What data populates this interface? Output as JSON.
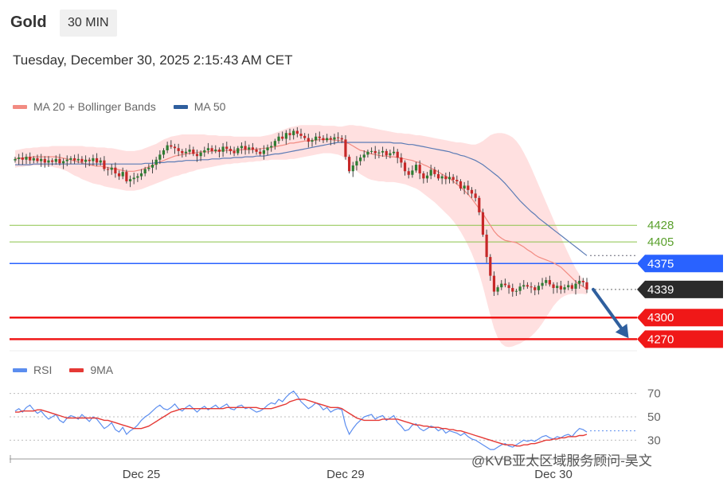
{
  "header": {
    "instrument": "Gold",
    "timeframe": "30 MIN",
    "datetime": "Tuesday, December 30, 2025 2:15:43 AM CET"
  },
  "watermark": "@KVB亚太区域服务顾问-吴文",
  "colors": {
    "up": "#2e7d32",
    "down": "#c62828",
    "ma20": "#f28b82",
    "band_fill": "#ffd6d6",
    "ma50": "#5b7bb5",
    "green_level": "#8bc34a",
    "green_text": "#5aa02c",
    "blue_level": "#2962ff",
    "red_level": "#f01818",
    "current": "#2b2b2b",
    "rsi": "#5b8def",
    "rsi_ma": "#e53935",
    "arrow": "#2f5f9e"
  },
  "chart_data": [
    {
      "type": "candlestick",
      "title": "Gold",
      "legend": [
        {
          "name": "MA 20 + Bollinger Bands",
          "color": "#f28b82"
        },
        {
          "name": "MA 50",
          "color": "#2f5f9e"
        }
      ],
      "legend_position": "top-left",
      "x_tick_labels": [
        "Dec 25",
        "Dec 29",
        "Dec 30"
      ],
      "x_tick_index": [
        34,
        89,
        145
      ],
      "ylim": [
        4255,
        4575
      ],
      "levels": [
        {
          "value": 4428,
          "label": "4428",
          "style": "green"
        },
        {
          "value": 4405,
          "label": "4405",
          "style": "green"
        },
        {
          "value": 4375,
          "label": "4375",
          "style": "blue"
        },
        {
          "value": 4339,
          "label": "4339",
          "style": "current"
        },
        {
          "value": 4300,
          "label": "4300",
          "style": "red"
        },
        {
          "value": 4270,
          "label": "4270",
          "style": "red"
        }
      ],
      "close": [
        4520,
        4522,
        4519,
        4523,
        4518,
        4521,
        4517,
        4520,
        4515,
        4518,
        4516,
        4520,
        4514,
        4517,
        4519,
        4521,
        4518,
        4520,
        4516,
        4519,
        4517,
        4521,
        4515,
        4518,
        4506,
        4505,
        4508,
        4500,
        4496,
        4502,
        4489,
        4492,
        4494,
        4496,
        4500,
        4506,
        4508,
        4512,
        4519,
        4526,
        4532,
        4539,
        4537,
        4535,
        4531,
        4528,
        4530,
        4533,
        4527,
        4524,
        4529,
        4532,
        4535,
        4531,
        4533,
        4530,
        4537,
        4534,
        4531,
        4528,
        4535,
        4538,
        4533,
        4536,
        4533,
        4530,
        4527,
        4532,
        4536,
        4538,
        4545,
        4551,
        4548,
        4556,
        4553,
        4559,
        4555,
        4552,
        4549,
        4544,
        4546,
        4551,
        4549,
        4546,
        4549,
        4547,
        4550,
        4549,
        4547,
        4523,
        4503,
        4511,
        4517,
        4522,
        4526,
        4530,
        4531,
        4528,
        4529,
        4531,
        4525,
        4528,
        4530,
        4522,
        4515,
        4503,
        4498,
        4504,
        4512,
        4500,
        4493,
        4497,
        4505,
        4499,
        4493,
        4496,
        4492,
        4495,
        4491,
        4489,
        4479,
        4483,
        4477,
        4472,
        4466,
        4446,
        4415,
        4384,
        4358,
        4336,
        4342,
        4347,
        4345,
        4341,
        4336,
        4337,
        4343,
        4345,
        4343,
        4342,
        4338,
        4344,
        4348,
        4352,
        4346,
        4341,
        4344,
        4339,
        4342,
        4345,
        4340,
        4347,
        4351,
        4349,
        4339
      ],
      "open_offset_note": "",
      "bb_upper": [
        4532,
        4533,
        4534,
        4535,
        4535,
        4536,
        4536,
        4537,
        4537,
        4537,
        4538,
        4538,
        4538,
        4538,
        4538,
        4538,
        4538,
        4538,
        4538,
        4537,
        4537,
        4537,
        4536,
        4536,
        4536,
        4535,
        4535,
        4534,
        4533,
        4532,
        4531,
        4531,
        4531,
        4532,
        4533,
        4535,
        4537,
        4539,
        4541,
        4544,
        4547,
        4549,
        4551,
        4552,
        4553,
        4554,
        4554,
        4554,
        4554,
        4554,
        4554,
        4554,
        4553,
        4553,
        4553,
        4552,
        4552,
        4552,
        4552,
        4551,
        4551,
        4551,
        4551,
        4551,
        4551,
        4551,
        4551,
        4552,
        4553,
        4554,
        4556,
        4558,
        4560,
        4562,
        4564,
        4565,
        4566,
        4567,
        4567,
        4567,
        4567,
        4567,
        4567,
        4566,
        4566,
        4566,
        4566,
        4565,
        4565,
        4566,
        4567,
        4567,
        4566,
        4566,
        4565,
        4564,
        4563,
        4562,
        4561,
        4560,
        4559,
        4558,
        4557,
        4556,
        4556,
        4555,
        4555,
        4554,
        4553,
        4553,
        4552,
        4551,
        4550,
        4549,
        4548,
        4547,
        4546,
        4545,
        4544,
        4543,
        4543,
        4542,
        4541,
        4540,
        4540,
        4542,
        4545,
        4549,
        4553,
        4555,
        4556,
        4556,
        4555,
        4553,
        4550,
        4545,
        4538,
        4529,
        4519,
        4508,
        4496,
        4484,
        4472,
        4460,
        4448,
        4436,
        4424,
        4412,
        4400,
        4389,
        4378,
        4368,
        4360,
        4352,
        4346
      ],
      "bb_lower": [
        4508,
        4509,
        4509,
        4510,
        4510,
        4511,
        4511,
        4511,
        4510,
        4510,
        4509,
        4508,
        4507,
        4505,
        4503,
        4500,
        4497,
        4495,
        4492,
        4490,
        4488,
        4486,
        4485,
        4484,
        4482,
        4481,
        4480,
        4479,
        4478,
        4477,
        4476,
        4476,
        4476,
        4477,
        4478,
        4480,
        4482,
        4484,
        4486,
        4488,
        4490,
        4492,
        4494,
        4496,
        4497,
        4499,
        4500,
        4502,
        4503,
        4505,
        4506,
        4507,
        4508,
        4509,
        4510,
        4511,
        4512,
        4513,
        4513,
        4514,
        4514,
        4515,
        4515,
        4516,
        4516,
        4517,
        4517,
        4518,
        4518,
        4519,
        4519,
        4519,
        4519,
        4519,
        4520,
        4520,
        4521,
        4522,
        4523,
        4524,
        4525,
        4526,
        4527,
        4528,
        4528,
        4528,
        4527,
        4526,
        4524,
        4520,
        4514,
        4508,
        4503,
        4499,
        4496,
        4493,
        4491,
        4490,
        4489,
        4489,
        4488,
        4488,
        4488,
        4487,
        4486,
        4485,
        4483,
        4481,
        4479,
        4476,
        4472,
        4468,
        4464,
        4460,
        4455,
        4450,
        4445,
        4440,
        4434,
        4427,
        4419,
        4410,
        4400,
        4389,
        4376,
        4361,
        4343,
        4323,
        4303,
        4285,
        4272,
        4264,
        4260,
        4259,
        4260,
        4262,
        4264,
        4267,
        4270,
        4274,
        4279,
        4285,
        4292,
        4300,
        4308,
        4316,
        4322,
        4327,
        4330,
        4332,
        4333,
        4333,
        4333,
        4333,
        4332
      ],
      "ma20": [
        4520,
        4521,
        4521,
        4522,
        4522,
        4523,
        4523,
        4523,
        4523,
        4523,
        4523,
        4523,
        4522,
        4521,
        4520,
        4519,
        4517,
        4516,
        4515,
        4513,
        4512,
        4511,
        4510,
        4510,
        4509,
        4508,
        4507,
        4506,
        4505,
        4504,
        4503,
        4503,
        4503,
        4504,
        4505,
        4507,
        4509,
        4511,
        4513,
        4516,
        4518,
        4520,
        4522,
        4524,
        4525,
        4526,
        4527,
        4528,
        4528,
        4529,
        4530,
        4530,
        4530,
        4531,
        4531,
        4531,
        4532,
        4532,
        4532,
        4532,
        4532,
        4533,
        4533,
        4533,
        4533,
        4534,
        4534,
        4535,
        4535,
        4536,
        4537,
        4538,
        4539,
        4540,
        4542,
        4542,
        4543,
        4544,
        4545,
        4545,
        4546,
        4546,
        4547,
        4547,
        4547,
        4547,
        4546,
        4546,
        4545,
        4543,
        4541,
        4538,
        4535,
        4532,
        4531,
        4529,
        4527,
        4526,
        4525,
        4524,
        4524,
        4523,
        4523,
        4522,
        4521,
        4520,
        4519,
        4518,
        4516,
        4515,
        4512,
        4510,
        4507,
        4505,
        4502,
        4499,
        4496,
        4493,
        4489,
        4485,
        4481,
        4476,
        4471,
        4465,
        4458,
        4451,
        4444,
        4436,
        4428,
        4420,
        4414,
        4410,
        4407,
        4406,
        4405,
        4404,
        4401,
        4398,
        4394,
        4391,
        4387,
        4384,
        4382,
        4380,
        4378,
        4376,
        4373,
        4370,
        4365,
        4360,
        4355,
        4350,
        4346,
        4343,
        4340
      ],
      "ma50": [
        4512,
        4512,
        4512,
        4512,
        4512,
        4513,
        4513,
        4513,
        4513,
        4513,
        4513,
        4513,
        4513,
        4513,
        4513,
        4513,
        4513,
        4513,
        4513,
        4513,
        4513,
        4513,
        4513,
        4513,
        4513,
        4513,
        4513,
        4513,
        4513,
        4513,
        4513,
        4513,
        4513,
        4513,
        4513,
        4514,
        4514,
        4514,
        4515,
        4515,
        4515,
        4516,
        4516,
        4516,
        4517,
        4517,
        4518,
        4518,
        4518,
        4518,
        4519,
        4519,
        4519,
        4520,
        4520,
        4520,
        4521,
        4521,
        4521,
        4522,
        4522,
        4522,
        4523,
        4523,
        4523,
        4524,
        4524,
        4524,
        4525,
        4526,
        4527,
        4527,
        4528,
        4529,
        4530,
        4531,
        4532,
        4533,
        4534,
        4535,
        4536,
        4537,
        4538,
        4539,
        4540,
        4541,
        4542,
        4543,
        4543,
        4543,
        4543,
        4543,
        4543,
        4543,
        4543,
        4543,
        4543,
        4543,
        4543,
        4543,
        4543,
        4543,
        4542,
        4542,
        4542,
        4541,
        4540,
        4540,
        4539,
        4538,
        4537,
        4536,
        4535,
        4534,
        4533,
        4532,
        4531,
        4530,
        4528,
        4527,
        4525,
        4524,
        4522,
        4520,
        4518,
        4515,
        4512,
        4508,
        4504,
        4500,
        4496,
        4491,
        4486,
        4480,
        4474,
        4468,
        4462,
        4457,
        4452,
        4447,
        4443,
        4438,
        4434,
        4430,
        4426,
        4422,
        4418,
        4414,
        4410,
        4406,
        4402,
        4398,
        4394,
        4390,
        4386
      ],
      "forecast_arrow": {
        "from": 4339,
        "to": 4270
      }
    },
    {
      "type": "line",
      "legend": [
        {
          "name": "RSI",
          "color": "#5b8def"
        },
        {
          "name": "9MA",
          "color": "#e53935"
        }
      ],
      "y_tick_labels": [
        "70",
        "50",
        "30"
      ],
      "y_ticks": [
        70,
        50,
        30
      ],
      "ylim": [
        20,
        80
      ],
      "rsi": [
        55,
        57,
        54,
        58,
        60,
        56,
        53,
        55,
        51,
        48,
        50,
        52,
        47,
        45,
        49,
        51,
        50,
        48,
        52,
        49,
        46,
        50,
        48,
        44,
        40,
        42,
        45,
        39,
        37,
        41,
        35,
        38,
        40,
        43,
        47,
        50,
        52,
        55,
        58,
        60,
        57,
        56,
        58,
        61,
        57,
        55,
        58,
        60,
        57,
        54,
        57,
        59,
        56,
        58,
        60,
        57,
        59,
        61,
        57,
        56,
        59,
        60,
        57,
        58,
        56,
        54,
        55,
        57,
        60,
        62,
        61,
        65,
        63,
        67,
        70,
        72,
        68,
        63,
        60,
        57,
        59,
        62,
        60,
        56,
        58,
        54,
        56,
        57,
        56,
        43,
        35,
        40,
        44,
        47,
        50,
        51,
        52,
        48,
        50,
        51,
        47,
        49,
        51,
        45,
        42,
        38,
        39,
        43,
        44,
        40,
        38,
        40,
        42,
        41,
        38,
        40,
        36,
        38,
        37,
        36,
        34,
        36,
        33,
        31,
        30,
        28,
        26,
        24,
        22,
        22,
        24,
        26,
        27,
        25,
        24,
        26,
        28,
        30,
        29,
        30,
        29,
        31,
        33,
        34,
        32,
        31,
        33,
        32,
        34,
        35,
        33,
        37,
        40,
        39,
        37
      ],
      "rsi_ma": [
        54,
        54,
        55,
        55,
        55,
        55,
        56,
        56,
        55,
        54,
        53,
        52,
        51,
        50,
        49,
        49,
        49,
        49,
        49,
        49,
        49,
        49,
        49,
        48,
        47,
        47,
        46,
        45,
        44,
        43,
        42,
        41,
        40,
        40,
        40,
        41,
        42,
        44,
        46,
        48,
        50,
        52,
        54,
        55,
        56,
        57,
        57,
        57,
        57,
        57,
        57,
        57,
        57,
        57,
        57,
        57,
        57,
        58,
        58,
        58,
        58,
        58,
        58,
        58,
        58,
        58,
        57,
        57,
        57,
        57,
        58,
        59,
        60,
        61,
        63,
        64,
        65,
        65,
        65,
        64,
        63,
        62,
        61,
        60,
        59,
        58,
        58,
        58,
        57,
        55,
        53,
        51,
        49,
        48,
        47,
        47,
        47,
        47,
        47,
        48,
        48,
        48,
        48,
        48,
        47,
        46,
        45,
        44,
        43,
        43,
        42,
        42,
        41,
        41,
        41,
        40,
        40,
        39,
        39,
        38,
        38,
        37,
        36,
        35,
        34,
        33,
        32,
        31,
        30,
        29,
        28,
        27,
        26,
        26,
        26,
        25,
        25,
        26,
        26,
        27,
        27,
        28,
        29,
        30,
        30,
        31,
        31,
        32,
        32,
        33,
        33,
        33,
        34,
        34,
        35
      ],
      "dotted_level": 38
    }
  ]
}
